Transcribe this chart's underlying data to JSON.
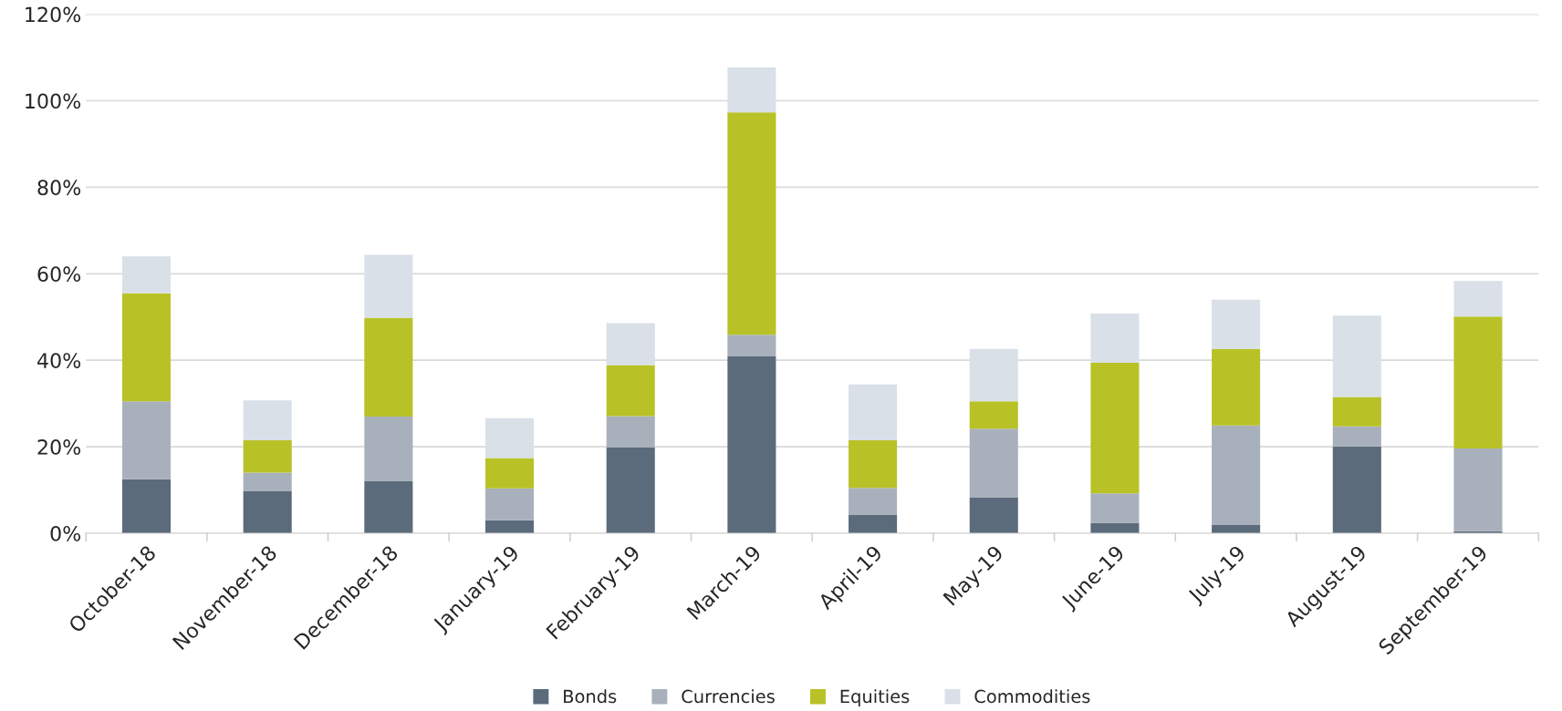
{
  "chart_data": {
    "type": "bar",
    "stacked": true,
    "categories": [
      "October-18",
      "November-18",
      "December-18",
      "January-19",
      "February-19",
      "March-19",
      "April-19",
      "May-19",
      "June-19",
      "July-19",
      "August-19",
      "September-19"
    ],
    "series": [
      {
        "name": "Bonds",
        "color": "#5b6b7b",
        "values": [
          12.5,
          9.7,
          12,
          3,
          19.8,
          40.9,
          4.2,
          8.2,
          2.4,
          1.9,
          20.1,
          0.5
        ]
      },
      {
        "name": "Currencies",
        "color": "#a8b1bb",
        "values": [
          18,
          4.3,
          15,
          7.4,
          7.3,
          5,
          6.3,
          16,
          6.8,
          23,
          4.6,
          19.1
        ]
      },
      {
        "name": "Equities",
        "color": "#b8c227",
        "values": [
          25,
          7.5,
          22.8,
          7,
          11.8,
          51.4,
          11,
          6.3,
          30.2,
          17.7,
          6.8,
          30.5
        ]
      },
      {
        "name": "Commodities",
        "color": "#d9e0e7",
        "values": [
          8.5,
          9.2,
          14.6,
          9.2,
          9.7,
          10.4,
          12.9,
          12.1,
          11.4,
          11.4,
          18.8,
          8.2
        ]
      }
    ],
    "ylim": [
      0,
      120
    ],
    "yticks": [
      {
        "value": 0,
        "label": "0%"
      },
      {
        "value": 20,
        "label": "20%"
      },
      {
        "value": 40,
        "label": "40%"
      },
      {
        "value": 60,
        "label": "60%"
      },
      {
        "value": 80,
        "label": "80%"
      },
      {
        "value": 100,
        "label": "100%"
      },
      {
        "value": 120,
        "label": "120%"
      }
    ],
    "grid": "y",
    "legend": "bottom"
  }
}
